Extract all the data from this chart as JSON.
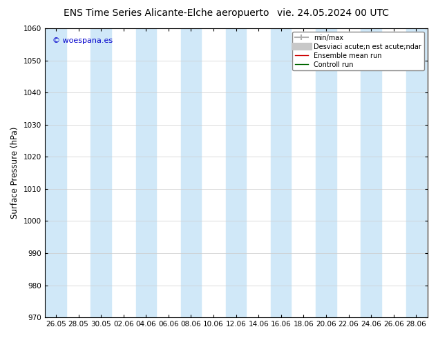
{
  "title_left": "ENS Time Series Alicante-Elche aeropuerto",
  "title_right": "vie. 24.05.2024 00 UTC",
  "ylabel": "Surface Pressure (hPa)",
  "ylim": [
    970,
    1060
  ],
  "yticks": [
    970,
    980,
    990,
    1000,
    1010,
    1020,
    1030,
    1040,
    1050,
    1060
  ],
  "xtick_labels": [
    "26.05",
    "28.05",
    "30.05",
    "02.06",
    "04.06",
    "06.06",
    "08.06",
    "10.06",
    "12.06",
    "14.06",
    "16.06",
    "18.06",
    "20.06",
    "22.06",
    "24.06",
    "26.06",
    "28.06"
  ],
  "watermark": "© woespana.es",
  "legend_items": [
    {
      "label": "min/max",
      "color": "#c0c0c0",
      "lw": 2
    },
    {
      "label": "Desviaci acute;n est acute;ndar",
      "color": "#d0d0d0",
      "lw": 8
    },
    {
      "label": "Ensemble mean run",
      "color": "#cc0000",
      "lw": 1.0
    },
    {
      "label": "Controll run",
      "color": "#006600",
      "lw": 1.0
    }
  ],
  "band_color": "#d0e8f8",
  "band_alpha": 1.0,
  "background_color": "#ffffff",
  "plot_bg_color": "#ffffff",
  "title_fontsize": 10,
  "axis_label_fontsize": 8.5,
  "tick_fontsize": 7.5,
  "watermark_fontsize": 8,
  "watermark_color": "#0000cc"
}
